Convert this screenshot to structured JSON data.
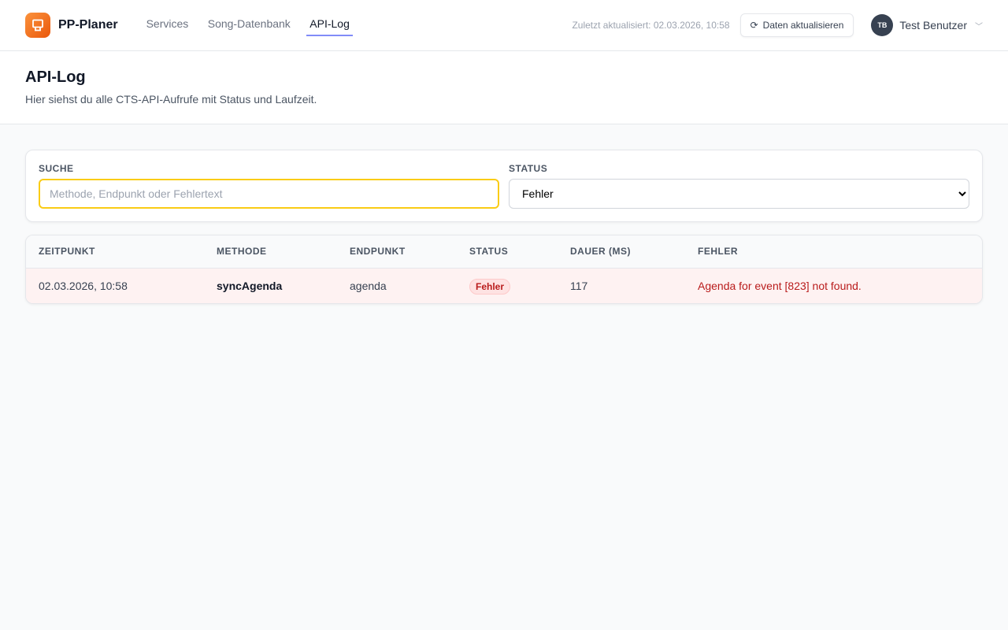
{
  "header": {
    "brand": "PP-Planer",
    "nav": [
      {
        "label": "Services"
      },
      {
        "label": "Song-Datenbank"
      },
      {
        "label": "API-Log",
        "active": true
      }
    ],
    "last_updated": "Zuletzt aktualisiert: 02.03.2026, 10:58",
    "refresh_label": "Daten aktualisieren",
    "user_initials": "TB",
    "user_name": "Test Benutzer"
  },
  "page": {
    "title": "API-Log",
    "subtitle": "Hier siehst du alle CTS-API-Aufrufe mit Status und Laufzeit."
  },
  "filters": {
    "search_label": "SUCHE",
    "search_placeholder": "Methode, Endpunkt oder Fehlertext",
    "search_value": "",
    "status_label": "STATUS",
    "status_value": "Fehler"
  },
  "table": {
    "columns": [
      "ZEITPUNKT",
      "METHODE",
      "ENDPUNKT",
      "STATUS",
      "DAUER (MS)",
      "FEHLER"
    ],
    "rows": [
      {
        "time": "02.03.2026, 10:58",
        "method": "syncAgenda",
        "endpoint": "agenda",
        "status": "Fehler",
        "duration": "117",
        "error": "Agenda for event [823] not found."
      }
    ]
  },
  "colors": {
    "accent": "#818cf8",
    "brand": "#f97316",
    "error": "#b91c1c"
  }
}
